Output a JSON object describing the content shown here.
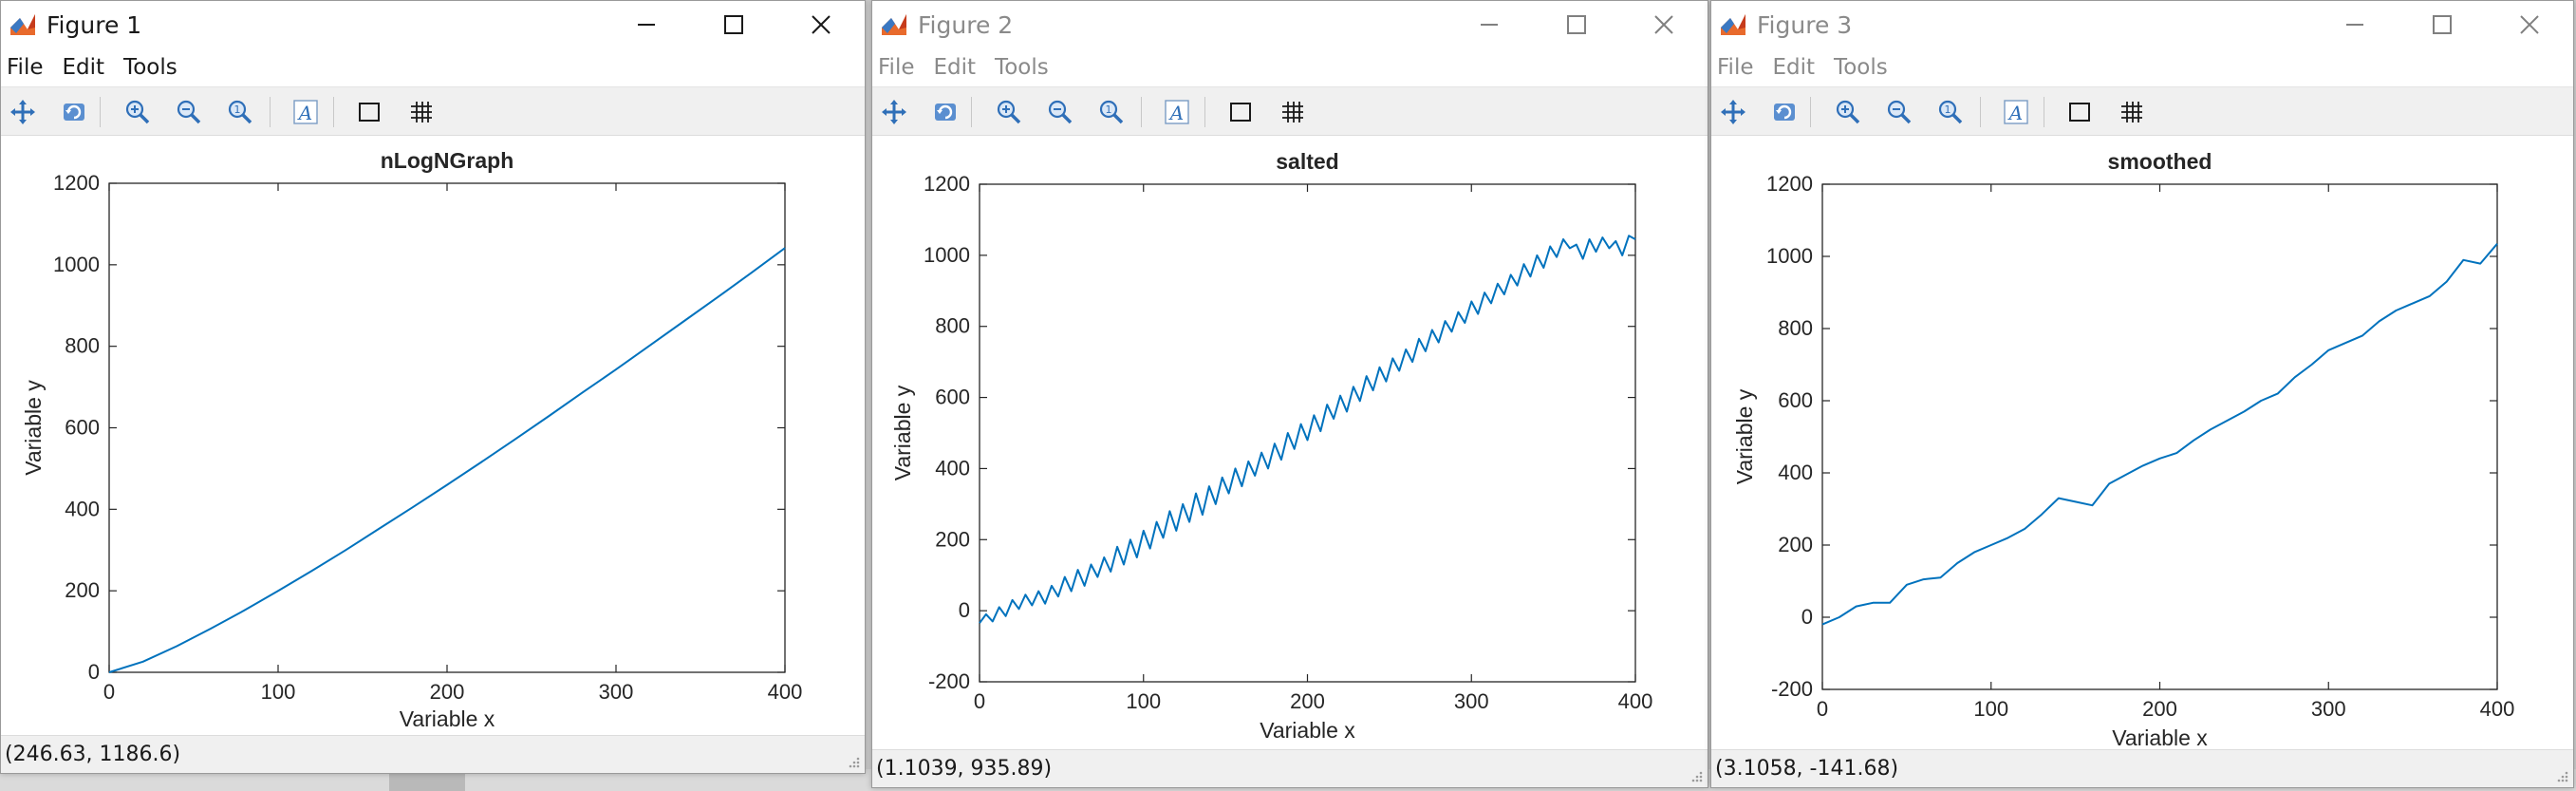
{
  "windows": [
    {
      "title": "Figure 1",
      "active": true,
      "menu": [
        "File",
        "Edit",
        "Tools"
      ],
      "status": "(246.63, 1186.6)"
    },
    {
      "title": "Figure 2",
      "active": false,
      "menu": [
        "File",
        "Edit",
        "Tools"
      ],
      "status": "(1.1039, 935.89)"
    },
    {
      "title": "Figure 3",
      "active": false,
      "menu": [
        "File",
        "Edit",
        "Tools"
      ],
      "status": "(3.1058, -141.68)"
    }
  ],
  "toolbar_icons": [
    "pan-icon",
    "rotate-icon",
    "zoom-in-icon",
    "zoom-out-icon",
    "zoom-reset-icon",
    "text-icon",
    "box-icon",
    "grid-icon"
  ],
  "colors": {
    "line": "#0072bd",
    "toolbar": "#f0f0f0",
    "axis": "#262626"
  },
  "chart_data": [
    {
      "type": "line",
      "title": "nLogNGraph",
      "xlabel": "Variable x",
      "ylabel": "Variable y",
      "xlim": [
        0,
        400
      ],
      "ylim": [
        0,
        1200
      ],
      "xticks": [
        "0",
        "100",
        "200",
        "300",
        "400"
      ],
      "yticks": [
        "0",
        "200",
        "400",
        "600",
        "800",
        "1000",
        "1200"
      ],
      "series": [
        {
          "x": [
            0,
            20,
            40,
            60,
            80,
            100,
            120,
            140,
            160,
            180,
            200,
            220,
            240,
            260,
            280,
            300,
            320,
            340,
            360,
            380,
            400
          ],
          "y": [
            0,
            26,
            64,
            107,
            152,
            200,
            249,
            300,
            353,
            406,
            460,
            515,
            571,
            628,
            686,
            743,
            802,
            861,
            920,
            980,
            1041
          ]
        }
      ]
    },
    {
      "type": "line",
      "title": "salted",
      "xlabel": "Variable x",
      "ylabel": "Variable y",
      "xlim": [
        0,
        400
      ],
      "ylim": [
        -200,
        1200
      ],
      "xticks": [
        "0",
        "100",
        "200",
        "300",
        "400"
      ],
      "yticks": [
        "-200",
        "0",
        "200",
        "400",
        "600",
        "800",
        "1000",
        "1200"
      ],
      "series": [
        {
          "x": [
            0,
            4,
            8,
            12,
            16,
            20,
            24,
            28,
            32,
            36,
            40,
            44,
            48,
            52,
            56,
            60,
            64,
            68,
            72,
            76,
            80,
            84,
            88,
            92,
            96,
            100,
            104,
            108,
            112,
            116,
            120,
            124,
            128,
            132,
            136,
            140,
            144,
            148,
            152,
            156,
            160,
            164,
            168,
            172,
            176,
            180,
            184,
            188,
            192,
            196,
            200,
            204,
            208,
            212,
            216,
            220,
            224,
            228,
            232,
            236,
            240,
            244,
            248,
            252,
            256,
            260,
            264,
            268,
            272,
            276,
            280,
            284,
            288,
            292,
            296,
            300,
            304,
            308,
            312,
            316,
            320,
            324,
            328,
            332,
            336,
            340,
            344,
            348,
            352,
            356,
            360,
            364,
            368,
            372,
            376,
            380,
            384,
            388,
            392,
            396,
            400
          ],
          "y": [
            -35,
            -10,
            -30,
            10,
            -15,
            30,
            5,
            45,
            15,
            55,
            20,
            70,
            40,
            95,
            55,
            115,
            70,
            130,
            95,
            150,
            110,
            180,
            130,
            200,
            150,
            225,
            175,
            250,
            205,
            280,
            225,
            300,
            250,
            330,
            270,
            350,
            300,
            375,
            330,
            400,
            350,
            420,
            380,
            445,
            400,
            470,
            425,
            500,
            455,
            525,
            480,
            550,
            505,
            580,
            540,
            605,
            560,
            630,
            590,
            660,
            620,
            685,
            645,
            710,
            675,
            735,
            700,
            765,
            730,
            790,
            755,
            815,
            785,
            840,
            810,
            870,
            835,
            895,
            865,
            920,
            890,
            945,
            915,
            975,
            940,
            1000,
            965,
            1025,
            995,
            1045,
            1020,
            1030,
            990,
            1045,
            1010,
            1050,
            1020,
            1040,
            1000,
            1055,
            1045
          ]
        }
      ]
    },
    {
      "type": "line",
      "title": "smoothed",
      "xlabel": "Variable x",
      "ylabel": "Variable y",
      "xlim": [
        0,
        400
      ],
      "ylim": [
        -200,
        1200
      ],
      "xticks": [
        "0",
        "100",
        "200",
        "300",
        "400"
      ],
      "yticks": [
        "-200",
        "0",
        "200",
        "400",
        "600",
        "800",
        "1000",
        "1200"
      ],
      "series": [
        {
          "x": [
            0,
            10,
            20,
            30,
            40,
            50,
            60,
            70,
            80,
            90,
            100,
            110,
            120,
            130,
            140,
            150,
            160,
            170,
            180,
            190,
            200,
            210,
            220,
            230,
            240,
            250,
            260,
            270,
            280,
            290,
            300,
            310,
            320,
            330,
            340,
            350,
            360,
            370,
            380,
            390,
            400
          ],
          "y": [
            -20,
            0,
            30,
            40,
            40,
            90,
            105,
            110,
            150,
            180,
            200,
            220,
            245,
            285,
            330,
            320,
            310,
            370,
            395,
            420,
            440,
            455,
            490,
            520,
            545,
            570,
            600,
            620,
            665,
            700,
            740,
            760,
            780,
            820,
            850,
            870,
            890,
            930,
            990,
            980,
            1035
          ]
        }
      ]
    }
  ]
}
